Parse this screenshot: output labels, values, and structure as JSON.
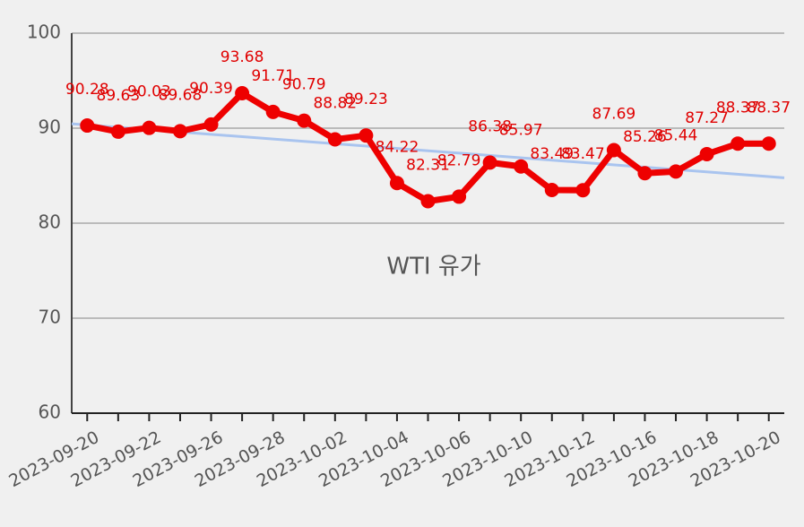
{
  "chart_data": {
    "type": "line",
    "title": "WTI 유가",
    "categories": [
      "2023-09-20",
      null,
      "2023-09-22",
      null,
      "2023-09-26",
      null,
      "2023-09-28",
      null,
      "2023-10-02",
      null,
      "2023-10-04",
      null,
      "2023-10-06",
      null,
      "2023-10-10",
      null,
      "2023-10-12",
      null,
      "2023-10-16",
      null,
      "2023-10-18",
      null,
      "2023-10-20"
    ],
    "series": [
      {
        "name": "WTI 유가",
        "color": "#ee0000",
        "values": [
          90.28,
          89.63,
          90.03,
          89.68,
          90.39,
          93.68,
          91.71,
          90.79,
          88.82,
          89.23,
          84.22,
          82.31,
          82.79,
          86.38,
          85.97,
          83.49,
          83.47,
          87.69,
          85.26,
          85.44,
          87.27,
          88.37,
          88.37
        ]
      }
    ],
    "trendline": true,
    "trendline_color": "#a9c4ef",
    "ylim": [
      60,
      100
    ],
    "yticks": [
      60,
      70,
      80,
      90,
      100
    ],
    "grid": true
  }
}
